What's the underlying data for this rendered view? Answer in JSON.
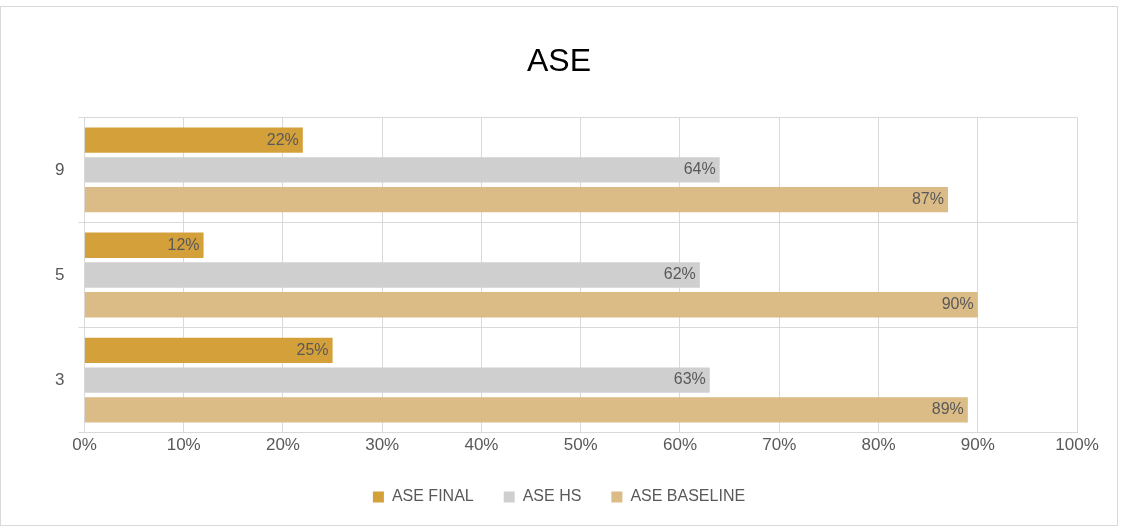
{
  "chart_data": {
    "type": "bar",
    "orientation": "horizontal",
    "title": "ASE",
    "categories": [
      "9",
      "5",
      "3"
    ],
    "series": [
      {
        "name": "ASE FINAL",
        "color": "#d4a03a",
        "values": [
          22,
          12,
          25
        ],
        "value_labels": [
          "22%",
          "12%",
          "25%"
        ]
      },
      {
        "name": "ASE HS",
        "color": "#d0cfcf",
        "values": [
          64,
          62,
          63
        ],
        "value_labels": [
          "64%",
          "62%",
          "63%"
        ]
      },
      {
        "name": "ASE BASELINE",
        "color": "#dbbb86",
        "values": [
          87,
          90,
          89
        ],
        "value_labels": [
          "87%",
          "90%",
          "89%"
        ]
      }
    ],
    "xlim": [
      0,
      100
    ],
    "xticks": [
      {
        "value": 0,
        "label": "0%"
      },
      {
        "value": 10,
        "label": "10%"
      },
      {
        "value": 20,
        "label": "20%"
      },
      {
        "value": 30,
        "label": "30%"
      },
      {
        "value": 40,
        "label": "40%"
      },
      {
        "value": 50,
        "label": "50%"
      },
      {
        "value": 60,
        "label": "60%"
      },
      {
        "value": 70,
        "label": "70%"
      },
      {
        "value": 80,
        "label": "80%"
      },
      {
        "value": 90,
        "label": "90%"
      },
      {
        "value": 100,
        "label": "100%"
      }
    ],
    "grid": true,
    "legend": "bottom"
  }
}
